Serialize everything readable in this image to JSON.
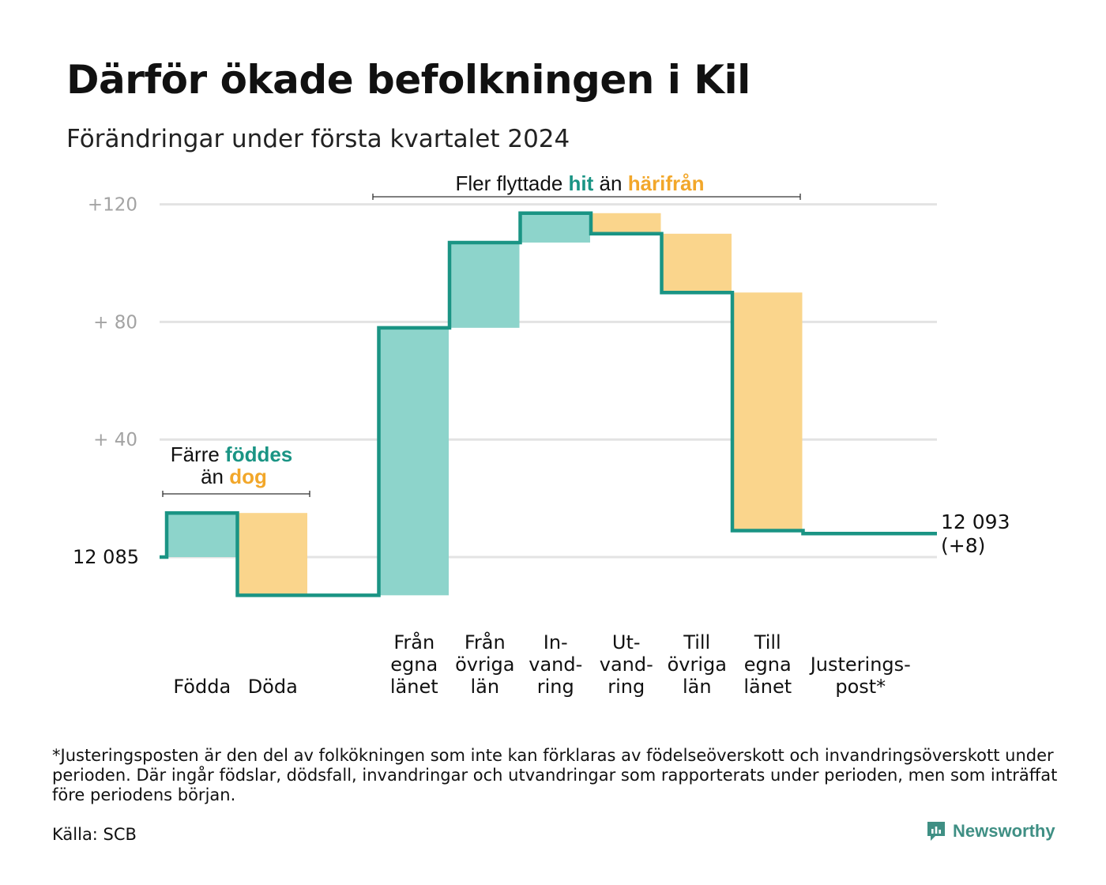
{
  "title": "Därför ökade befolkningen i Kil",
  "subtitle": "Förändringar under första kvartalet 2024",
  "footnote": "*Justeringsposten är den del av folkökningen som inte kan förklaras av födelseöverskott och invandringsöverskott under perioden. Där ingår födslar, dödsfall, invandringar och utvandringar som rapporterats under perioden, men som inträffat före periodens början.",
  "source": "Källa: SCB",
  "brand": {
    "name": "Newsworthy",
    "icon": "newsworthy-logo-icon"
  },
  "colors": {
    "increase": "#8dd4cb",
    "decrease": "#fad58c",
    "line": "#1a9484",
    "hit_text": "#1a9484",
    "harifran_text": "#f2a72a",
    "grid": "#e3e3e3"
  },
  "annotations": {
    "births": {
      "word1": "Färre",
      "word2": "föddes",
      "word3": "än",
      "word4": "dog"
    },
    "migration": {
      "word1": "Fler flyttade",
      "word2": "hit",
      "word3": "än",
      "word4": "härifrån"
    }
  },
  "chart_data": {
    "type": "waterfall",
    "baseline_value": 12085,
    "baseline_label": "12  085",
    "yticks": [
      {
        "value": 40,
        "label": "+  40"
      },
      {
        "value": 80,
        "label": "+  80"
      },
      {
        "value": 120,
        "label": "+120"
      }
    ],
    "ylim": [
      -20,
      124
    ],
    "steps": [
      {
        "label_lines": [
          "Födda"
        ],
        "change": 15,
        "kind": "increase"
      },
      {
        "label_lines": [
          "Döda"
        ],
        "change": -28,
        "kind": "decrease"
      },
      {
        "label_lines": [
          ""
        ],
        "change": 0,
        "kind": "gap"
      },
      {
        "label_lines": [
          "Från",
          "egna",
          "länet"
        ],
        "change": 91,
        "kind": "increase"
      },
      {
        "label_lines": [
          "Från",
          "övriga",
          "län"
        ],
        "change": 29,
        "kind": "increase"
      },
      {
        "label_lines": [
          "In-",
          "vand-",
          "ring"
        ],
        "change": 10,
        "kind": "increase"
      },
      {
        "label_lines": [
          "Ut-",
          "vand-",
          "ring"
        ],
        "change": -7,
        "kind": "decrease"
      },
      {
        "label_lines": [
          "Till",
          "övriga",
          "län"
        ],
        "change": -20,
        "kind": "decrease"
      },
      {
        "label_lines": [
          "Till",
          "egna",
          "länet"
        ],
        "change": -81,
        "kind": "decrease"
      },
      {
        "label_lines": [
          "Justerings-",
          "post*"
        ],
        "change": -1,
        "kind": "adjustment"
      }
    ],
    "end_value_label": "12 093",
    "end_change_label": "(+8)"
  }
}
